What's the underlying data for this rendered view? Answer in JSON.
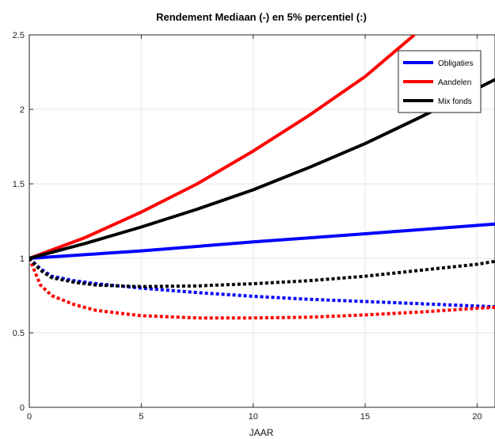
{
  "chart_data": {
    "type": "line",
    "title": "Rendement Mediaan (-) en 5% percentiel (:)",
    "xlabel": "JAAR",
    "ylabel": "",
    "xlim": [
      0,
      20.8
    ],
    "ylim": [
      0,
      2.5
    ],
    "xticks": [
      "0",
      "5",
      "10",
      "15",
      "20"
    ],
    "yticks": [
      "0",
      "0.5",
      "1",
      "1.5",
      "2",
      "2.5"
    ],
    "grid": true,
    "legend_position": "top-right",
    "series": [
      {
        "name": "Obligaties",
        "color": "#0000ff",
        "style": "solid",
        "x": [
          0,
          5,
          10,
          15,
          20.8
        ],
        "values": [
          1.0,
          1.05,
          1.11,
          1.165,
          1.23
        ]
      },
      {
        "name": "Aandelen",
        "color": "#ff0000",
        "style": "solid",
        "x": [
          0,
          2.5,
          5,
          7.5,
          10,
          12.5,
          15,
          17.2
        ],
        "values": [
          1.0,
          1.14,
          1.31,
          1.5,
          1.72,
          1.96,
          2.22,
          2.5
        ]
      },
      {
        "name": "Mix fonds",
        "color": "#000000",
        "style": "solid",
        "x": [
          0,
          2.5,
          5,
          7.5,
          10,
          12.5,
          15,
          17.5,
          20.8
        ],
        "values": [
          1.0,
          1.1,
          1.21,
          1.33,
          1.46,
          1.61,
          1.77,
          1.95,
          2.2
        ]
      },
      {
        "name": "",
        "color": "#0000ff",
        "style": "dotted",
        "x": [
          0,
          0.5,
          1,
          2,
          3,
          5,
          7.5,
          10,
          12.5,
          15,
          17.5,
          20,
          20.8
        ],
        "values": [
          1.0,
          0.93,
          0.88,
          0.85,
          0.83,
          0.8,
          0.77,
          0.745,
          0.725,
          0.71,
          0.695,
          0.68,
          0.675
        ]
      },
      {
        "name": "",
        "color": "#ff0000",
        "style": "dotted",
        "x": [
          0,
          0.5,
          1,
          2,
          3,
          5,
          7.5,
          10,
          12.5,
          15,
          17.5,
          20,
          20.8
        ],
        "values": [
          1.0,
          0.82,
          0.75,
          0.69,
          0.65,
          0.615,
          0.6,
          0.6,
          0.605,
          0.62,
          0.64,
          0.665,
          0.67
        ]
      },
      {
        "name": "",
        "color": "#000000",
        "style": "dotted",
        "x": [
          0,
          0.5,
          1,
          2,
          3,
          5,
          7.5,
          10,
          12.5,
          15,
          17.5,
          20,
          20.8
        ],
        "values": [
          1.0,
          0.92,
          0.87,
          0.84,
          0.82,
          0.81,
          0.815,
          0.83,
          0.85,
          0.88,
          0.92,
          0.96,
          0.98
        ]
      }
    ]
  }
}
